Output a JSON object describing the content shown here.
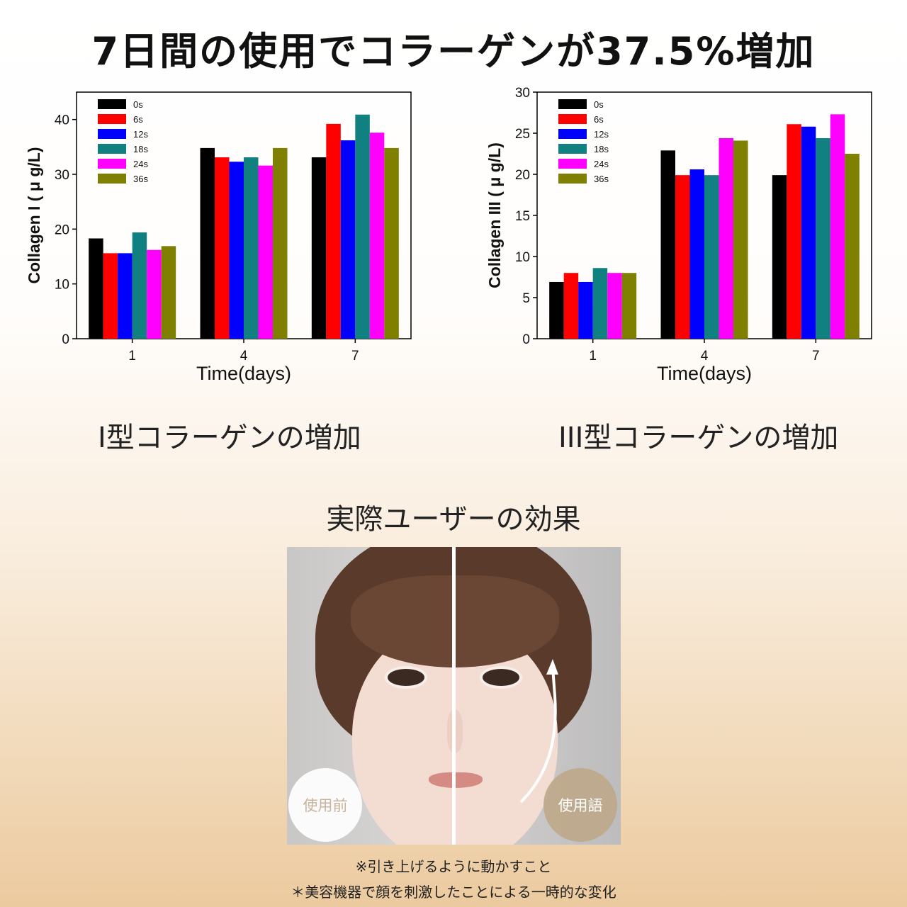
{
  "headline": "7日間の使用でコラーゲンが37.5%増加",
  "charts": [
    {
      "caption": "I型コラーゲンの増加",
      "chart_data": {
        "type": "bar",
        "xlabel": "Time(days)",
        "ylabel": "Collagen I ( μ g/L)",
        "categories": [
          "1",
          "4",
          "7"
        ],
        "ylim": [
          0,
          45
        ],
        "yticks": [
          0,
          10,
          20,
          30,
          40
        ],
        "grid": false,
        "legend": "top-left",
        "series": [
          {
            "name": "0s",
            "color": "#000000",
            "values": [
              18.3,
              34.8,
              33.1
            ]
          },
          {
            "name": "6s",
            "color": "#ff0000",
            "values": [
              15.6,
              33.1,
              39.2
            ]
          },
          {
            "name": "12s",
            "color": "#0000ff",
            "values": [
              15.6,
              32.3,
              36.2
            ]
          },
          {
            "name": "18s",
            "color": "#118080",
            "values": [
              19.4,
              33.1,
              40.9
            ]
          },
          {
            "name": "24s",
            "color": "#ff00ff",
            "values": [
              16.2,
              31.6,
              37.6
            ]
          },
          {
            "name": "36s",
            "color": "#808000",
            "values": [
              16.9,
              34.8,
              34.8
            ]
          }
        ]
      }
    },
    {
      "caption": "III型コラーゲンの増加",
      "chart_data": {
        "type": "bar",
        "xlabel": "Time(days)",
        "ylabel": "Collagen III ( μ g/L)",
        "categories": [
          "1",
          "4",
          "7"
        ],
        "ylim": [
          0,
          30
        ],
        "yticks": [
          0,
          5,
          10,
          15,
          20,
          25,
          30
        ],
        "grid": false,
        "legend": "top-left",
        "series": [
          {
            "name": "0s",
            "color": "#000000",
            "values": [
              6.9,
              22.9,
              19.9
            ]
          },
          {
            "name": "6s",
            "color": "#ff0000",
            "values": [
              8.0,
              19.9,
              26.1
            ]
          },
          {
            "name": "12s",
            "color": "#0000ff",
            "values": [
              6.9,
              20.6,
              25.8
            ]
          },
          {
            "name": "18s",
            "color": "#118080",
            "values": [
              8.6,
              19.9,
              24.4
            ]
          },
          {
            "name": "24s",
            "color": "#ff00ff",
            "values": [
              8.0,
              24.4,
              27.3
            ]
          },
          {
            "name": "36s",
            "color": "#808000",
            "values": [
              8.0,
              24.1,
              22.5
            ]
          }
        ]
      }
    }
  ],
  "section_title": "実際ユーザーの効果",
  "photo": {
    "before_label": "使用前",
    "after_label": "使用語"
  },
  "notes": [
    "※引き上げるように動かすこと",
    "＊美容機器で顔を刺激したことによる一時的な変化"
  ]
}
